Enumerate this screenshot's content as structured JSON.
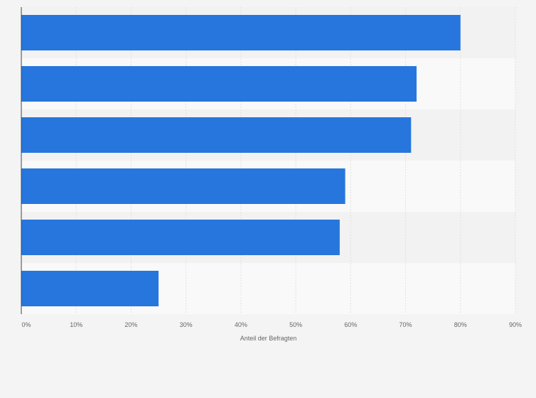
{
  "chart_data": {
    "type": "bar",
    "orientation": "horizontal",
    "categories": [
      "",
      "",
      "",
      "",
      "",
      ""
    ],
    "values": [
      80,
      72,
      71,
      59,
      58,
      25
    ],
    "xlabel": "Anteil der Befragten",
    "ylabel": "",
    "xlim": [
      0,
      90
    ],
    "x_ticks": [
      "0%",
      "10%",
      "20%",
      "30%",
      "40%",
      "50%",
      "60%",
      "70%",
      "80%",
      "90%"
    ],
    "unit": "%",
    "grid": true,
    "legend": "none",
    "colors": {
      "bar": "#2776dd",
      "band_dark": "#f2f2f2",
      "band_light": "#f9f9f9",
      "gridline": "#e0e0e0",
      "axis": "#444444"
    }
  }
}
